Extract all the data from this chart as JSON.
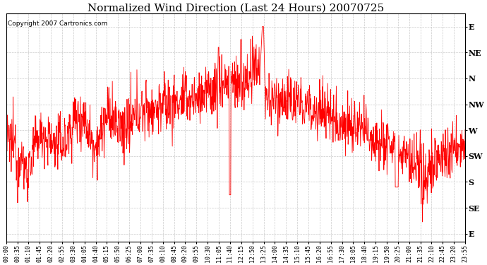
{
  "title": "Normalized Wind Direction (Last 24 Hours) 20070725",
  "copyright": "Copyright 2007 Cartronics.com",
  "ytick_labels": [
    "E",
    "NE",
    "N",
    "NW",
    "W",
    "SW",
    "S",
    "SE",
    "E"
  ],
  "ytick_values": [
    8,
    7,
    6,
    5,
    4,
    3,
    2,
    1,
    0
  ],
  "ylim": [
    -0.3,
    8.5
  ],
  "line_color": "#ff0000",
  "background_color": "#ffffff",
  "grid_color": "#bbbbbb",
  "title_fontsize": 11,
  "copyright_fontsize": 6.5,
  "xtick_fontsize": 6,
  "ytick_fontsize": 8,
  "xtick_labels": [
    "00:00",
    "00:35",
    "01:10",
    "01:45",
    "02:20",
    "02:55",
    "03:30",
    "04:05",
    "04:40",
    "05:15",
    "05:50",
    "06:25",
    "07:00",
    "07:35",
    "08:10",
    "08:45",
    "09:20",
    "09:55",
    "10:30",
    "11:05",
    "11:40",
    "12:15",
    "12:50",
    "13:25",
    "14:00",
    "14:35",
    "15:10",
    "15:45",
    "16:20",
    "16:55",
    "17:30",
    "18:05",
    "18:40",
    "19:15",
    "19:50",
    "20:25",
    "21:00",
    "21:35",
    "22:10",
    "22:45",
    "23:20",
    "23:55"
  ],
  "figsize": [
    6.9,
    3.75
  ],
  "dpi": 100
}
